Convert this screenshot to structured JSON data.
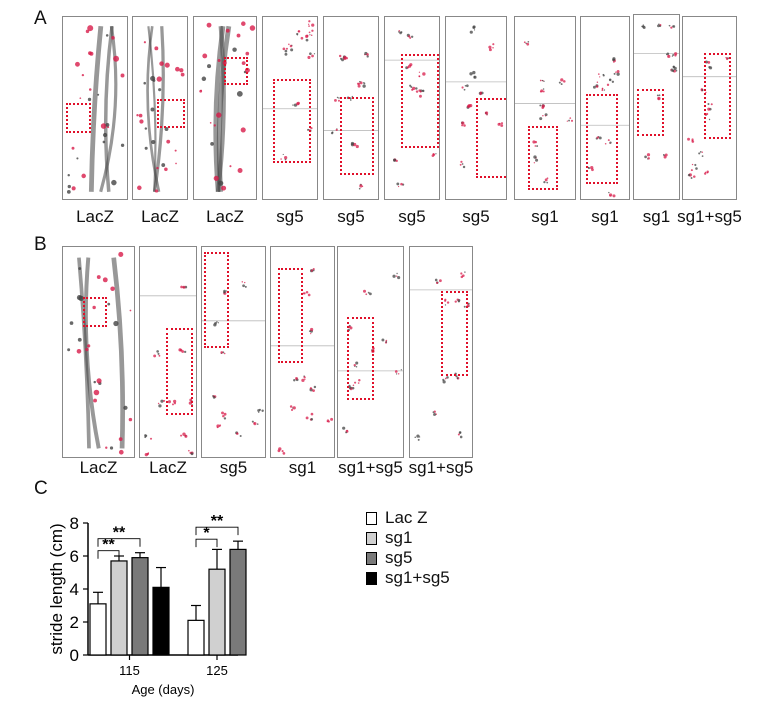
{
  "panels": {
    "a": "A",
    "b": "B",
    "c": "C"
  },
  "row_a": [
    {
      "label": "LacZ",
      "type": "lacz",
      "box": true
    },
    {
      "label": "LacZ",
      "type": "lacz",
      "box": true
    },
    {
      "label": "LacZ",
      "type": "lacz",
      "box": true
    },
    {
      "label": "sg5",
      "type": "ko",
      "box": true
    },
    {
      "label": "sg5",
      "type": "ko",
      "box": true
    },
    {
      "label": "sg5",
      "type": "ko",
      "box": true
    },
    {
      "label": "sg5",
      "type": "ko",
      "box": true
    },
    {
      "label": "sg1",
      "type": "ko",
      "box": true
    },
    {
      "label": "sg1",
      "type": "ko",
      "box": true
    },
    {
      "label": "sg1",
      "type": "ko",
      "box": true
    },
    {
      "label": "sg1+sg5",
      "type": "ko",
      "box": true
    }
  ],
  "row_b": [
    {
      "label": "LacZ",
      "type": "lacz",
      "box": true
    },
    {
      "label": "LacZ",
      "type": "ko",
      "box": true
    },
    {
      "label": "sg5",
      "type": "ko",
      "box": true
    },
    {
      "label": "sg1",
      "type": "ko",
      "box": true
    },
    {
      "label": "sg1+sg5",
      "type": "ko",
      "box": true
    },
    {
      "label": "sg1+sg5",
      "type": "ko",
      "box": true
    }
  ],
  "colors": {
    "frame": "#888888",
    "selection": "#e0102a",
    "print_red": "#d81b4a",
    "print_dark": "#444444"
  },
  "chart_data": {
    "type": "bar",
    "xlabel": "Age (days)",
    "ylabel": "stride length (cm)",
    "categories": [
      "115",
      "125"
    ],
    "ylim": [
      0,
      8
    ],
    "yticks": [
      "0",
      "2",
      "4",
      "6",
      "8"
    ],
    "series": [
      {
        "name": "Lac Z",
        "color": "#ffffff",
        "values": [
          3.1,
          2.1
        ],
        "errors": [
          0.7,
          0.9
        ]
      },
      {
        "name": "sg1",
        "color": "#d0d0d0",
        "values": [
          5.7,
          5.2
        ],
        "errors": [
          0.3,
          1.2
        ]
      },
      {
        "name": "sg5",
        "color": "#7a7a7a",
        "values": [
          5.9,
          6.4
        ],
        "errors": [
          0.3,
          0.5
        ]
      },
      {
        "name": "sg1+sg5",
        "color": "#000000",
        "values": [
          4.1,
          null
        ],
        "errors": [
          1.2,
          null
        ]
      }
    ],
    "significance": [
      {
        "category": "115",
        "from": "Lac Z",
        "to": "sg1",
        "label": "**"
      },
      {
        "category": "115",
        "from": "Lac Z",
        "to": "sg5",
        "label": "**"
      },
      {
        "category": "125",
        "from": "Lac Z",
        "to": "sg1",
        "label": "*"
      },
      {
        "category": "125",
        "from": "Lac Z",
        "to": "sg5",
        "label": "**"
      }
    ],
    "legend_position": "right"
  }
}
